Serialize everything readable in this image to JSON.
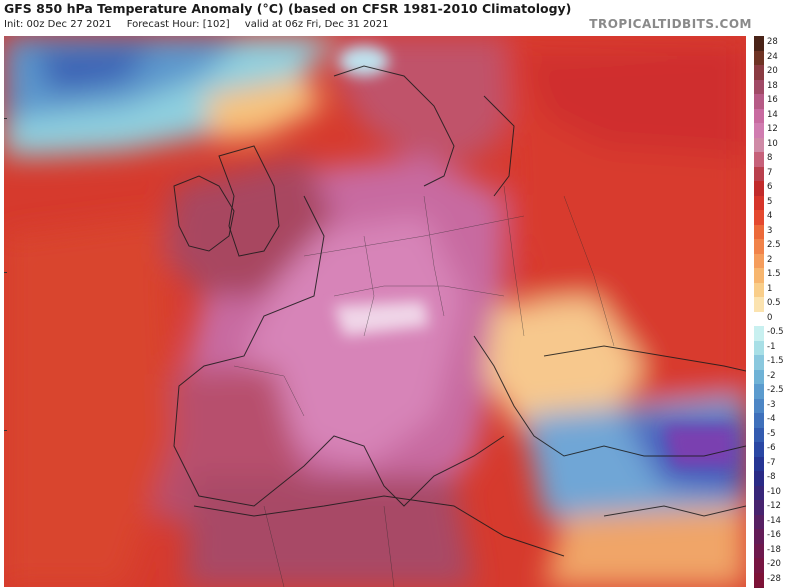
{
  "header": {
    "title": "GFS 850 hPa Temperature Anomaly (°C) (based on CFSR 1981-2010 Climatology)",
    "init": "Init: 00z Dec 27 2021",
    "forecast_hour": "Forecast Hour: [102]",
    "valid": "valid at 06z Fri, Dec 31 2021",
    "brand": "TROPICALTIDBITS.COM"
  },
  "legend": {
    "labels": [
      "28",
      "24",
      "20",
      "18",
      "16",
      "14",
      "12",
      "10",
      "8",
      "7",
      "6",
      "5",
      "4",
      "3",
      "2.5",
      "2",
      "1.5",
      "1",
      "0.5",
      "0",
      "-0.5",
      "-1",
      "-1.5",
      "-2",
      "-2.5",
      "-3",
      "-4",
      "-5",
      "-6",
      "-7",
      "-8",
      "-10",
      "-12",
      "-14",
      "-16",
      "-18",
      "-20",
      "-28"
    ],
    "colors": [
      "#4a2318",
      "#6e3324",
      "#8a3b42",
      "#a04a66",
      "#b65a86",
      "#c86aa0",
      "#d07cb0",
      "#cf8aa6",
      "#c6617a",
      "#b9404d",
      "#c12b2b",
      "#d6352b",
      "#e4492f",
      "#ec6a3a",
      "#f1834a",
      "#f59d5c",
      "#f7b66f",
      "#f9ce8a",
      "#fbe3b0",
      "#ffffff",
      "#c8f0f0",
      "#a8dfe6",
      "#8ac8de",
      "#6fb2d6",
      "#5b9bce",
      "#4d86c5",
      "#3f70bb",
      "#335bb0",
      "#2a47a4",
      "#263594",
      "#2a2a86",
      "#372679",
      "#47236e",
      "#562062",
      "#631c57",
      "#6e194d",
      "#771542",
      "#7d1237"
    ]
  },
  "map": {
    "region": "Europe / North Atlantic",
    "variable": "850 hPa temperature anomaly",
    "units": "°C"
  }
}
